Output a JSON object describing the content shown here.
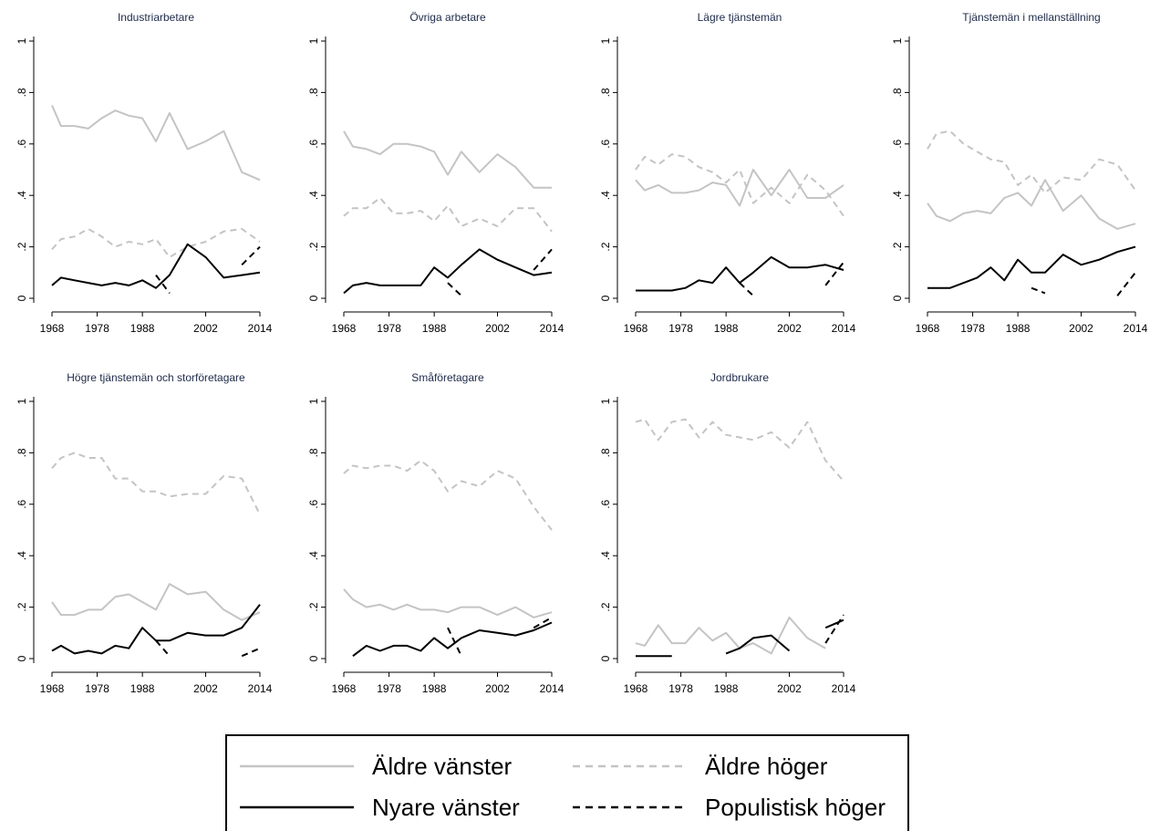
{
  "chart_data": {
    "type": "line",
    "ylim": [
      0,
      1
    ],
    "xlim": [
      1968,
      2014
    ],
    "x_ticks": [
      "1968",
      "1978",
      "1988",
      "2002",
      "2014"
    ],
    "y_ticks": [
      "0",
      ".2",
      ".4",
      ".6",
      ".8",
      "1"
    ],
    "legend": {
      "placement": "bottom",
      "entries": [
        "Äldre vänster",
        "Äldre höger",
        "Nyare vänster",
        "Populistisk höger"
      ]
    },
    "series_styles": {
      "Äldre vänster": {
        "color": "#c4c4c4",
        "dash": "solid"
      },
      "Äldre höger": {
        "color": "#c4c4c4",
        "dash": "dashed"
      },
      "Nyare vänster": {
        "color": "#000000",
        "dash": "solid"
      },
      "Populistisk höger": {
        "color": "#000000",
        "dash": "dashed"
      }
    },
    "x": [
      1968,
      1970,
      1973,
      1976,
      1979,
      1982,
      1985,
      1988,
      1991,
      1994,
      1998,
      2002,
      2006,
      2010,
      2014
    ],
    "panels": [
      {
        "title": "Industriarbetare",
        "series": [
          {
            "name": "Äldre vänster",
            "values": [
              0.75,
              0.67,
              0.67,
              0.66,
              0.7,
              0.73,
              0.71,
              0.7,
              0.61,
              0.72,
              0.58,
              0.61,
              0.65,
              0.49,
              0.46
            ]
          },
          {
            "name": "Äldre höger",
            "values": [
              0.19,
              0.23,
              0.24,
              0.27,
              0.24,
              0.2,
              0.22,
              0.21,
              0.23,
              0.16,
              0.2,
              0.22,
              0.26,
              0.27,
              0.22
            ]
          },
          {
            "name": "Nyare vänster",
            "values": [
              0.05,
              0.08,
              0.07,
              0.06,
              0.05,
              0.06,
              0.05,
              0.07,
              0.04,
              0.09,
              0.21,
              0.16,
              0.08,
              0.09,
              0.1
            ]
          },
          {
            "name": "Populistisk höger",
            "values": [
              null,
              null,
              null,
              null,
              null,
              null,
              null,
              null,
              0.09,
              0.02,
              null,
              null,
              null,
              0.13,
              0.2
            ]
          }
        ]
      },
      {
        "title": "Övriga arbetare",
        "series": [
          {
            "name": "Äldre vänster",
            "values": [
              0.65,
              0.59,
              0.58,
              0.56,
              0.6,
              0.6,
              0.59,
              0.57,
              0.48,
              0.57,
              0.49,
              0.56,
              0.51,
              0.43,
              0.43
            ]
          },
          {
            "name": "Äldre höger",
            "values": [
              0.32,
              0.35,
              0.35,
              0.39,
              0.33,
              0.33,
              0.34,
              0.3,
              0.36,
              0.28,
              0.31,
              0.28,
              0.35,
              0.35,
              0.26
            ]
          },
          {
            "name": "Nyare vänster",
            "values": [
              0.02,
              0.05,
              0.06,
              0.05,
              0.05,
              0.05,
              0.05,
              0.12,
              0.08,
              0.13,
              0.19,
              0.15,
              0.12,
              0.09,
              0.1
            ]
          },
          {
            "name": "Populistisk höger",
            "values": [
              null,
              null,
              null,
              null,
              null,
              null,
              null,
              null,
              0.06,
              0.01,
              null,
              null,
              null,
              0.11,
              0.19
            ]
          }
        ]
      },
      {
        "title": "Lägre tjänstemän",
        "series": [
          {
            "name": "Äldre vänster",
            "values": [
              0.46,
              0.42,
              0.44,
              0.41,
              0.41,
              0.42,
              0.45,
              0.44,
              0.36,
              0.5,
              0.4,
              0.5,
              0.39,
              0.39,
              0.44
            ]
          },
          {
            "name": "Äldre höger",
            "values": [
              0.5,
              0.55,
              0.52,
              0.56,
              0.55,
              0.51,
              0.49,
              0.45,
              0.5,
              0.37,
              0.43,
              0.37,
              0.48,
              0.42,
              0.32
            ]
          },
          {
            "name": "Nyare vänster",
            "values": [
              0.03,
              0.03,
              0.03,
              0.03,
              0.04,
              0.07,
              0.06,
              0.12,
              0.06,
              0.1,
              0.16,
              0.12,
              0.12,
              0.13,
              0.11
            ]
          },
          {
            "name": "Populistisk höger",
            "values": [
              null,
              null,
              null,
              null,
              null,
              null,
              null,
              null,
              0.06,
              0.01,
              null,
              null,
              null,
              0.05,
              0.14
            ]
          }
        ]
      },
      {
        "title": "Tjänstemän i mellanställning",
        "series": [
          {
            "name": "Äldre vänster",
            "values": [
              0.37,
              0.32,
              0.3,
              0.33,
              0.34,
              0.33,
              0.39,
              0.41,
              0.36,
              0.46,
              0.34,
              0.4,
              0.31,
              0.27,
              0.29
            ]
          },
          {
            "name": "Äldre höger",
            "values": [
              0.58,
              0.64,
              0.65,
              0.6,
              0.57,
              0.54,
              0.53,
              0.44,
              0.48,
              0.41,
              0.47,
              0.46,
              0.54,
              0.52,
              0.42
            ]
          },
          {
            "name": "Nyare vänster",
            "values": [
              0.04,
              0.04,
              0.04,
              0.06,
              0.08,
              0.12,
              0.07,
              0.15,
              0.1,
              0.1,
              0.17,
              0.13,
              0.15,
              0.18,
              0.2
            ]
          },
          {
            "name": "Populistisk höger",
            "values": [
              null,
              null,
              null,
              null,
              null,
              null,
              null,
              null,
              0.04,
              0.02,
              null,
              null,
              null,
              0.01,
              0.1
            ]
          }
        ]
      },
      {
        "title": "Högre tjänstemän och storföretagare",
        "series": [
          {
            "name": "Äldre vänster",
            "values": [
              0.22,
              0.17,
              0.17,
              0.19,
              0.19,
              0.24,
              0.25,
              0.22,
              0.19,
              0.29,
              0.25,
              0.26,
              0.19,
              0.15,
              0.18
            ]
          },
          {
            "name": "Äldre höger",
            "values": [
              0.74,
              0.78,
              0.8,
              0.78,
              0.78,
              0.7,
              0.7,
              0.65,
              0.65,
              0.63,
              0.64,
              0.64,
              0.71,
              0.7,
              0.56
            ]
          },
          {
            "name": "Nyare vänster",
            "values": [
              0.03,
              0.05,
              0.02,
              0.03,
              0.02,
              0.05,
              0.04,
              0.12,
              0.07,
              0.07,
              0.1,
              0.09,
              0.09,
              0.12,
              0.21
            ]
          },
          {
            "name": "Populistisk höger",
            "values": [
              null,
              null,
              null,
              null,
              null,
              null,
              null,
              null,
              0.07,
              0.01,
              null,
              null,
              null,
              0.01,
              0.04
            ]
          }
        ]
      },
      {
        "title": "Småföretagare",
        "series": [
          {
            "name": "Äldre vänster",
            "values": [
              0.27,
              0.23,
              0.2,
              0.21,
              0.19,
              0.21,
              0.19,
              0.19,
              0.18,
              0.2,
              0.2,
              0.17,
              0.2,
              0.16,
              0.18
            ]
          },
          {
            "name": "Äldre höger",
            "values": [
              0.72,
              0.75,
              0.74,
              0.75,
              0.75,
              0.73,
              0.77,
              0.73,
              0.65,
              0.69,
              0.67,
              0.73,
              0.7,
              0.59,
              0.5
            ]
          },
          {
            "name": "Nyare vänster",
            "values": [
              null,
              0.01,
              0.05,
              0.03,
              0.05,
              0.05,
              0.03,
              0.08,
              0.04,
              0.08,
              0.11,
              0.1,
              0.09,
              0.11,
              0.14
            ]
          },
          {
            "name": "Populistisk höger",
            "values": [
              null,
              null,
              null,
              null,
              null,
              null,
              null,
              null,
              0.12,
              0.01,
              null,
              null,
              null,
              0.12,
              0.16
            ]
          }
        ]
      },
      {
        "title": "Jordbrukare",
        "series": [
          {
            "name": "Äldre vänster",
            "values": [
              0.06,
              0.05,
              0.13,
              0.06,
              0.06,
              0.12,
              0.07,
              0.1,
              0.04,
              0.06,
              0.02,
              0.16,
              0.08,
              0.04,
              null
            ]
          },
          {
            "name": "Äldre höger",
            "values": [
              0.92,
              0.93,
              0.85,
              0.92,
              0.93,
              0.86,
              0.92,
              0.87,
              0.86,
              0.85,
              0.88,
              0.82,
              0.92,
              0.77,
              0.69
            ]
          },
          {
            "name": "Nyare vänster",
            "values": [
              0.01,
              0.01,
              0.01,
              0.01,
              null,
              null,
              null,
              0.02,
              0.04,
              0.08,
              0.09,
              0.03,
              null,
              0.12,
              0.15
            ]
          },
          {
            "name": "Populistisk höger",
            "values": [
              null,
              null,
              null,
              null,
              null,
              null,
              null,
              null,
              null,
              null,
              null,
              null,
              null,
              0.06,
              0.17
            ]
          }
        ]
      }
    ]
  }
}
